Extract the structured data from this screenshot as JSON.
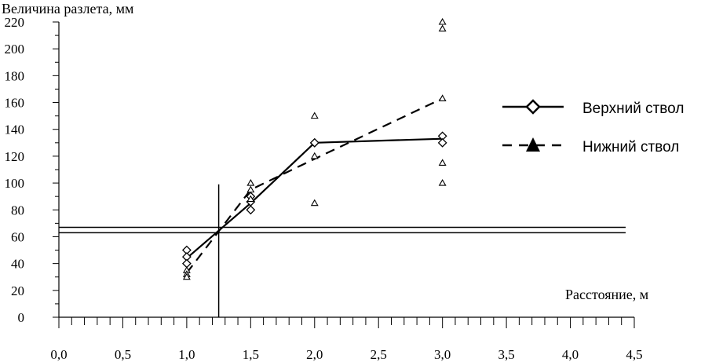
{
  "chart_data": {
    "type": "scatter",
    "ylabel": "Величина разлета, мм",
    "xlabel": "Расстояние, м",
    "xlim": [
      0,
      4.5
    ],
    "ylim": [
      0,
      220
    ],
    "x_ticks": [
      "0,0",
      "0,5",
      "1,0",
      "1,5",
      "2,0",
      "2,5",
      "3,0",
      "3,5",
      "4,0",
      "4,5"
    ],
    "x_tick_values": [
      0,
      0.5,
      1.0,
      1.5,
      2.0,
      2.5,
      3.0,
      3.5,
      4.0,
      4.5
    ],
    "y_ticks": [
      "0",
      "20",
      "40",
      "60",
      "80",
      "100",
      "120",
      "140",
      "160",
      "180",
      "200",
      "220"
    ],
    "y_tick_values": [
      0,
      20,
      40,
      60,
      80,
      100,
      120,
      140,
      160,
      180,
      200,
      220
    ],
    "grid": false,
    "legend_position": "right",
    "series": [
      {
        "name": "Верхний ствол",
        "line": {
          "x": [
            1.0,
            1.5,
            2.0,
            3.0
          ],
          "y": [
            44,
            85,
            130,
            133
          ]
        },
        "points": {
          "x": [
            1.0,
            1.0,
            1.0,
            1.5,
            1.5,
            1.5,
            2.0,
            2.0,
            3.0,
            3.0
          ],
          "y": [
            50,
            45,
            40,
            80,
            86,
            90,
            130,
            130,
            135,
            130
          ]
        },
        "style": "solid",
        "marker": "diamond"
      },
      {
        "name": "Нижний ствол",
        "line": {
          "x": [
            1.0,
            1.5,
            2.0,
            3.0
          ],
          "y": [
            33,
            95,
            118,
            163
          ]
        },
        "points": {
          "x": [
            1.0,
            1.0,
            1.0,
            1.5,
            1.5,
            1.5,
            2.0,
            2.0,
            2.0,
            3.0,
            3.0,
            3.0,
            3.0,
            3.0
          ],
          "y": [
            35,
            32,
            30,
            100,
            95,
            88,
            150,
            120,
            85,
            220,
            215,
            163,
            115,
            100
          ]
        },
        "style": "dashed",
        "marker": "triangle"
      }
    ],
    "reference_lines": {
      "horizontal": [
        67,
        63
      ],
      "vertical": {
        "x": 1.25,
        "y_top": 99
      }
    }
  }
}
